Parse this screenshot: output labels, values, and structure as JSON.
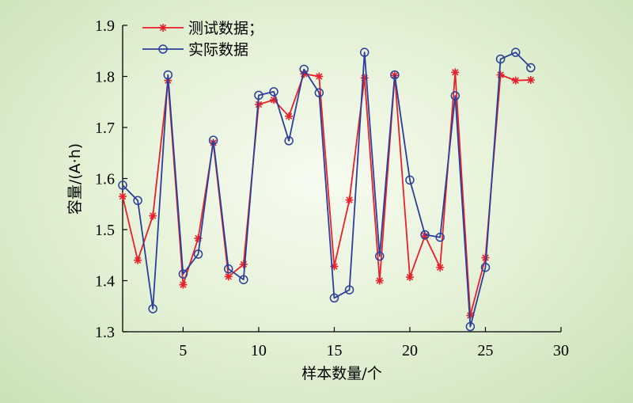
{
  "chart_data": {
    "type": "line",
    "xlabel": "样本数量/个",
    "ylabel": "容量/(A·h)",
    "xlim": [
      1,
      30
    ],
    "ylim": [
      1.3,
      1.9
    ],
    "xticks": [
      5,
      10,
      15,
      20,
      25,
      30
    ],
    "yticks": [
      1.3,
      1.4,
      1.5,
      1.6,
      1.7,
      1.8,
      1.9
    ],
    "x": [
      1,
      2,
      3,
      4,
      5,
      6,
      7,
      8,
      9,
      10,
      11,
      12,
      13,
      14,
      15,
      16,
      17,
      18,
      19,
      20,
      21,
      22,
      23,
      24,
      25,
      26,
      27,
      28
    ],
    "legend_position": "top-left",
    "grid": false,
    "series": [
      {
        "name": "测试数据；",
        "color": "#e8202a",
        "marker": "asterisk",
        "values": [
          1.565,
          1.44,
          1.527,
          1.792,
          1.392,
          1.483,
          1.67,
          1.408,
          1.432,
          1.745,
          1.754,
          1.722,
          1.805,
          1.8,
          1.428,
          1.558,
          1.797,
          1.4,
          1.802,
          1.407,
          1.488,
          1.426,
          1.808,
          1.332,
          1.445,
          1.803,
          1.792,
          1.793
        ]
      },
      {
        "name": "实际数据",
        "color": "#2a3f9c",
        "marker": "circle",
        "values": [
          1.587,
          1.557,
          1.345,
          1.803,
          1.413,
          1.452,
          1.675,
          1.423,
          1.402,
          1.763,
          1.77,
          1.674,
          1.814,
          1.768,
          1.366,
          1.382,
          1.847,
          1.448,
          1.803,
          1.597,
          1.49,
          1.485,
          1.762,
          1.31,
          1.426,
          1.834,
          1.847,
          1.817
        ]
      }
    ]
  }
}
